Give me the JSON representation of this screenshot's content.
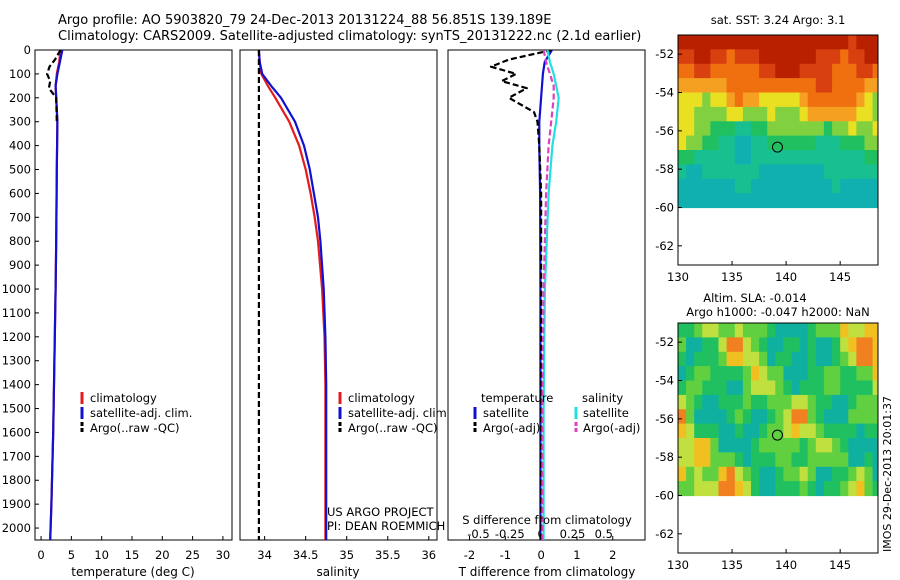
{
  "title": {
    "line1": "Argo profile: AO 5903820_79 24-Dec-2013 20131224_88 56.851S 139.189E",
    "line2": "Climatology: CARS2009. Satellite-adjusted climatology: synTS_20131222.nc (2.1d earlier)"
  },
  "credit": {
    "line1": "US ARGO PROJECT",
    "line2": "PI: DEAN ROEMMICH"
  },
  "side_label": "IMOS 29-Dec-2013 20:01:37",
  "colors": {
    "climatology": "#e41a1c",
    "satellite": "#1010d0",
    "argo": "#000000",
    "salinity_sat": "#22e0e0",
    "salinity_argo": "#e040c0"
  },
  "chart_data": [
    {
      "type": "line",
      "name": "temperature-panel",
      "xlabel": "temperature (deg C)",
      "ylabel": "",
      "xlim": [
        -1,
        31.5
      ],
      "ylim": [
        2050,
        0
      ],
      "xticks": [
        0,
        5,
        10,
        15,
        20,
        25,
        30
      ],
      "yticks": [
        0,
        100,
        200,
        300,
        400,
        500,
        600,
        700,
        800,
        900,
        1000,
        1100,
        1200,
        1300,
        1400,
        1500,
        1600,
        1700,
        1800,
        1900,
        2000
      ],
      "legend": [
        "climatology",
        "satellite-adj. clim.",
        "Argo(..raw -QC)"
      ],
      "series": [
        {
          "name": "climatology",
          "style": "solid",
          "depth": [
            0,
            50,
            100,
            150,
            200,
            300,
            500,
            800,
            1000,
            1300,
            1600,
            1900,
            2050
          ],
          "values": [
            3.2,
            3.0,
            2.6,
            2.4,
            2.5,
            2.7,
            2.6,
            2.5,
            2.4,
            2.2,
            2.0,
            1.7,
            1.5
          ]
        },
        {
          "name": "satellite-adj. clim.",
          "style": "solid",
          "depth": [
            0,
            50,
            100,
            150,
            200,
            300,
            500,
            800,
            1000,
            1300,
            1600,
            1900,
            2050
          ],
          "values": [
            3.5,
            3.1,
            2.7,
            2.4,
            2.5,
            2.7,
            2.6,
            2.5,
            2.4,
            2.2,
            2.0,
            1.7,
            1.5
          ]
        },
        {
          "name": "Argo(..raw -QC)",
          "style": "dashed",
          "depth": [
            0,
            40,
            70,
            100,
            130,
            160,
            200,
            300
          ],
          "values": [
            3.2,
            2.3,
            1.4,
            1.0,
            1.5,
            1.3,
            2.5,
            2.6
          ]
        }
      ]
    },
    {
      "type": "line",
      "name": "salinity-panel",
      "xlabel": "salinity",
      "ylabel": "",
      "xlim": [
        33.7,
        36.1
      ],
      "ylim": [
        2050,
        0
      ],
      "xticks": [
        34,
        34.5,
        35,
        35.5,
        36
      ],
      "xtick_labels": [
        "34",
        "34.5",
        "35",
        "35.5",
        "36"
      ],
      "legend": [
        "climatology",
        "satellite-adj. clim.",
        "Argo(..raw -QC)"
      ],
      "series": [
        {
          "name": "climatology",
          "style": "solid",
          "depth": [
            0,
            50,
            100,
            150,
            200,
            300,
            400,
            500,
            600,
            700,
            800,
            1000,
            1200,
            1400,
            1700,
            2050
          ],
          "values": [
            33.93,
            33.94,
            33.96,
            34.04,
            34.13,
            34.3,
            34.42,
            34.5,
            34.56,
            34.61,
            34.65,
            34.7,
            34.73,
            34.74,
            34.74,
            34.74
          ]
        },
        {
          "name": "satellite-adj. clim.",
          "style": "solid",
          "depth": [
            0,
            50,
            100,
            150,
            200,
            300,
            400,
            500,
            600,
            700,
            800,
            1000,
            1200,
            1400,
            1700,
            2050
          ],
          "values": [
            33.93,
            33.94,
            33.97,
            34.08,
            34.2,
            34.37,
            34.48,
            34.55,
            34.6,
            34.65,
            34.68,
            34.72,
            34.74,
            34.75,
            34.75,
            34.75
          ]
        },
        {
          "name": "Argo(..raw -QC)",
          "style": "dashed",
          "depth": [
            0,
            2050
          ],
          "values": [
            33.93,
            33.93
          ]
        }
      ]
    },
    {
      "type": "line",
      "name": "difference-panel",
      "xlabel": "T difference from climatology",
      "top_axis_label": "S difference from climatology",
      "xlim": [
        -2.6,
        2.9
      ],
      "ylim": [
        2050,
        0
      ],
      "xticks": [
        -2,
        -1,
        0,
        1,
        2
      ],
      "xtick_labels": [
        "-2",
        "-1",
        "0",
        "1",
        "2"
      ],
      "top_ticks": [
        -0.5,
        -0.25,
        0,
        0.25,
        0.5
      ],
      "top_tick_labels": [
        "-0.5",
        "-0.25",
        "0",
        "0.25",
        "0.5"
      ],
      "top_scale": 3.5,
      "legend_left_title": "temperature",
      "legend_right_title": "salinity",
      "legend_left": [
        "satellite",
        "Argo(-adj)"
      ],
      "legend_right": [
        "satellite",
        "Argo(-adj)"
      ],
      "series": [
        {
          "name": "T satellite",
          "style": "solid",
          "color_key": "satellite",
          "depth": [
            0,
            50,
            100,
            200,
            300,
            400,
            600,
            1000,
            1500,
            2050
          ],
          "values": [
            0.3,
            0.1,
            0.05,
            0.0,
            -0.05,
            -0.05,
            -0.03,
            -0.02,
            -0.02,
            -0.02
          ]
        },
        {
          "name": "T Argo(-adj)",
          "style": "dashed",
          "color_key": "argo",
          "depth": [
            0,
            40,
            70,
            100,
            130,
            160,
            200,
            260,
            300,
            400,
            600,
            1000,
            2050
          ],
          "values": [
            0.3,
            -0.9,
            -1.4,
            -0.7,
            -1.1,
            -0.4,
            -0.9,
            -0.2,
            -0.1,
            -0.05,
            0.0,
            0.0,
            0.0
          ]
        },
        {
          "name": "S satellite",
          "style": "solid",
          "color_key": "salinity_sat",
          "depth": [
            0,
            50,
            100,
            150,
            200,
            300,
            400,
            600,
            1000,
            1500,
            2050
          ],
          "values": [
            0.05,
            0.07,
            0.1,
            0.12,
            0.14,
            0.12,
            0.09,
            0.06,
            0.03,
            0.02,
            0.02
          ]
        },
        {
          "name": "S Argo(-adj)",
          "style": "dashed",
          "color_key": "salinity_argo",
          "depth": [
            0,
            50,
            100,
            150,
            200,
            300,
            400,
            600,
            1000,
            1500,
            2050
          ],
          "values": [
            0.02,
            0.04,
            0.07,
            0.1,
            0.1,
            0.08,
            0.06,
            0.04,
            0.02,
            0.01,
            0.01
          ]
        }
      ]
    },
    {
      "type": "heatmap",
      "name": "sst-map",
      "title": "sat. SST: 3.24  Argo: 3.1",
      "xlim": [
        130,
        148.5
      ],
      "ylim": [
        -63,
        -51
      ],
      "xticks": [
        130,
        135,
        140,
        145
      ],
      "yticks": [
        -52,
        -54,
        -56,
        -58,
        -60,
        -62
      ],
      "data_extent_lat": [
        -60,
        -51
      ],
      "marker": {
        "lon": 139.2,
        "lat": -56.85
      }
    },
    {
      "type": "heatmap",
      "name": "sla-map",
      "title_line1": "Altim. SLA: -0.014",
      "title_line2": "Argo h1000: -0.047 h2000: NaN",
      "xlim": [
        130,
        148.5
      ],
      "ylim": [
        -63,
        -51
      ],
      "xticks": [
        130,
        135,
        140,
        145
      ],
      "yticks": [
        -52,
        -54,
        -56,
        -58,
        -60,
        -62
      ],
      "data_extent_lat": [
        -60,
        -51
      ],
      "marker": {
        "lon": 139.2,
        "lat": -56.85
      }
    }
  ]
}
